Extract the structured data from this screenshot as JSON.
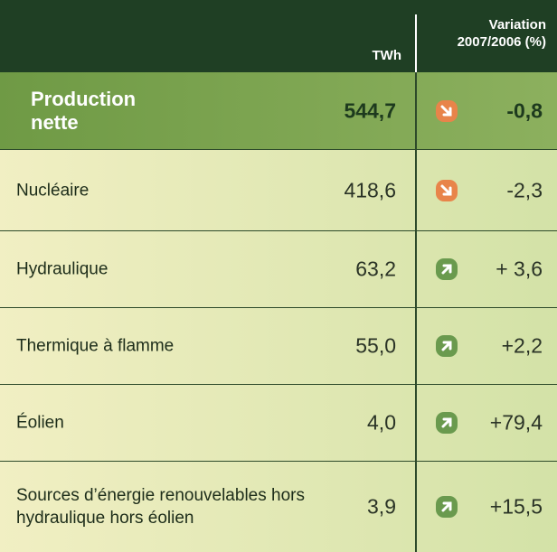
{
  "table": {
    "header": {
      "unit": "TWh",
      "variation": [
        "Variation",
        "2007/2006 (%)"
      ]
    },
    "total": {
      "label": "Production nette",
      "value": "544,7",
      "variation": "-0,8"
    },
    "rows": [
      {
        "label": "Nucléaire",
        "value": "418,6",
        "variation": "-2,3"
      },
      {
        "label": "Hydraulique",
        "value": "63,2",
        "variation": "+ 3,6"
      },
      {
        "label": "Thermique à flamme",
        "value": "55,0",
        "variation": "+2,2"
      },
      {
        "label": "Éolien",
        "value": "4,0",
        "variation": "+79,4"
      },
      {
        "label": "Sources d’énergie renouvelables hors hydraulique hors éolien",
        "value": "3,9",
        "variation": "+15,5"
      }
    ]
  }
}
